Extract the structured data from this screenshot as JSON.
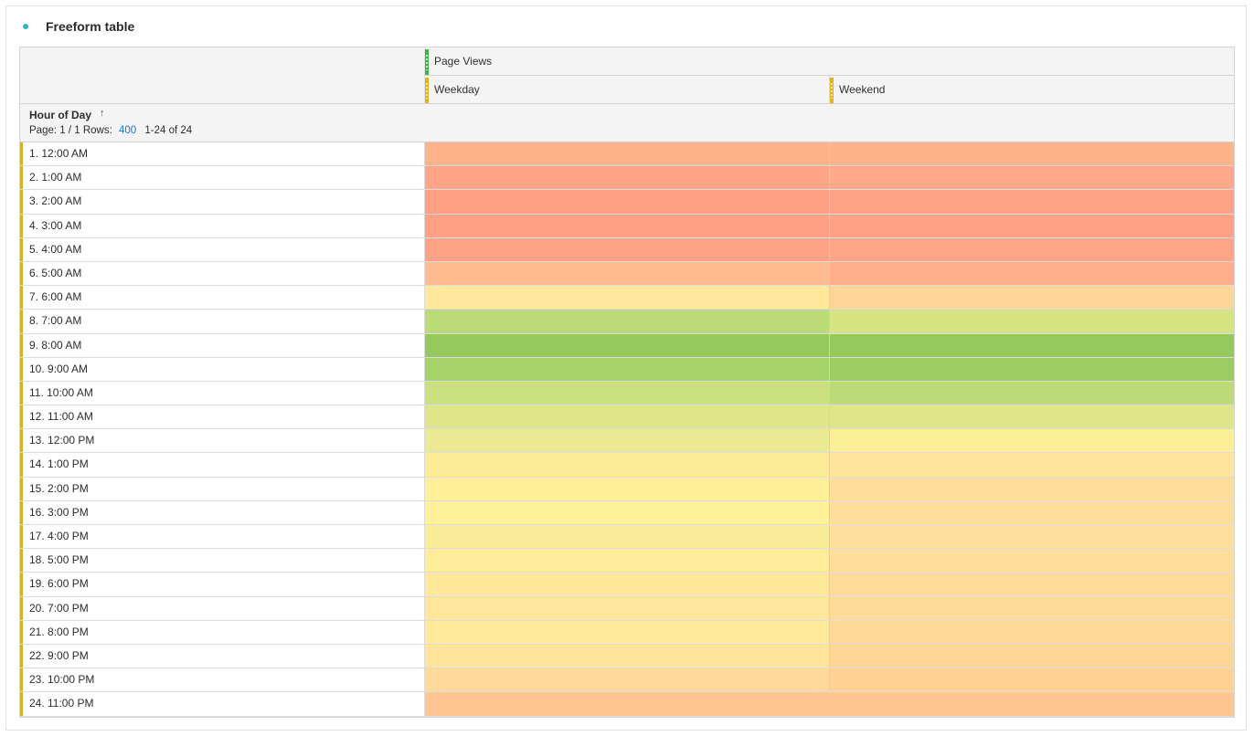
{
  "panel": {
    "title": "Freeform table"
  },
  "table": {
    "metric": "Page Views",
    "segments": [
      "Weekday",
      "Weekend"
    ],
    "dimension": "Hour of Day",
    "pager": {
      "page_label": "Page: 1 / 1",
      "rows_label": "Rows:",
      "rows_value": "400",
      "range": "1-24 of 24"
    },
    "colors": {
      "metric_bar": "#3bb34a",
      "segment_bar": "#e0b51a",
      "row_accent": "#d4b12a"
    },
    "rows": [
      {
        "label": "1.  12:00 AM",
        "weekday_color": "#ffb38b",
        "weekend_color": "#ffb38b"
      },
      {
        "label": "2.  1:00 AM",
        "weekday_color": "#ffa486",
        "weekend_color": "#ffa88a"
      },
      {
        "label": "3.  2:00 AM",
        "weekday_color": "#ffa085",
        "weekend_color": "#ffa286"
      },
      {
        "label": "4.  3:00 AM",
        "weekday_color": "#ffa085",
        "weekend_color": "#ffa185"
      },
      {
        "label": "5.  4:00 AM",
        "weekday_color": "#ffa286",
        "weekend_color": "#ffa588"
      },
      {
        "label": "6.  5:00 AM",
        "weekday_color": "#ffbb8f",
        "weekend_color": "#ffad8a"
      },
      {
        "label": "7.  6:00 AM",
        "weekday_color": "#ffe79b",
        "weekend_color": "#ffd597"
      },
      {
        "label": "8.  7:00 AM",
        "weekday_color": "#badb78",
        "weekend_color": "#d6e382"
      },
      {
        "label": "9.  8:00 AM",
        "weekday_color": "#96c95d",
        "weekend_color": "#96c95d"
      },
      {
        "label": "10.  9:00 AM",
        "weekday_color": "#a6d26a",
        "weekend_color": "#9dcc62"
      },
      {
        "label": "11.  10:00 AM",
        "weekday_color": "#cadf7d",
        "weekend_color": "#bcdb78"
      },
      {
        "label": "12.  11:00 AM",
        "weekday_color": "#dfe589",
        "weekend_color": "#dfe589"
      },
      {
        "label": "13.  12:00 PM",
        "weekday_color": "#ebe993",
        "weekend_color": "#fbee97"
      },
      {
        "label": "14.  1:00 PM",
        "weekday_color": "#fdec97",
        "weekend_color": "#ffe49b"
      },
      {
        "label": "15.  2:00 PM",
        "weekday_color": "#ffef99",
        "weekend_color": "#ffde9a"
      },
      {
        "label": "16.  3:00 PM",
        "weekday_color": "#fff09a",
        "weekend_color": "#ffdd9a"
      },
      {
        "label": "17.  4:00 PM",
        "weekday_color": "#f9ec99",
        "weekend_color": "#ffdf9a"
      },
      {
        "label": "18.  5:00 PM",
        "weekday_color": "#feec9a",
        "weekend_color": "#ffdd9a"
      },
      {
        "label": "19.  6:00 PM",
        "weekday_color": "#ffe89a",
        "weekend_color": "#ffdb99"
      },
      {
        "label": "20.  7:00 PM",
        "weekday_color": "#ffe69b",
        "weekend_color": "#ffda99"
      },
      {
        "label": "21.  8:00 PM",
        "weekday_color": "#ffe99a",
        "weekend_color": "#ffd998"
      },
      {
        "label": "22.  9:00 PM",
        "weekday_color": "#ffe59b",
        "weekend_color": "#ffd696"
      },
      {
        "label": "23.  10:00 PM",
        "weekday_color": "#ffd99a",
        "weekend_color": "#ffd294"
      },
      {
        "label": "24.  11:00 PM",
        "weekday_color": "#ffc693",
        "weekend_color": "#ffc692"
      }
    ]
  }
}
